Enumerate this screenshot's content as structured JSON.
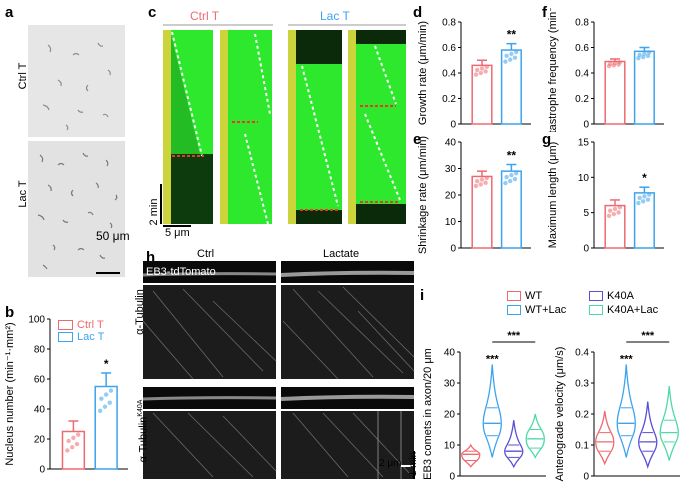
{
  "panel_labels": {
    "a": "a",
    "b": "b",
    "c": "c",
    "d": "d",
    "e": "e",
    "f": "f",
    "g": "g",
    "h": "h",
    "i": "i"
  },
  "colors": {
    "ctrl": "#ee6a70",
    "lac": "#3ca3ee",
    "wt": "#ee6a70",
    "wt_lac": "#3ca3ee",
    "k40a": "#5a4fd6",
    "k40a_lac": "#4fd9a6",
    "sig": "#000000"
  },
  "panel_a": {
    "ctrl_label": "Ctrl T",
    "lac_label": "Lac T",
    "scale": "50 μm"
  },
  "panel_c": {
    "ctrl_label": "Ctrl T",
    "lac_label": "Lac T",
    "time_scale": "2 min",
    "space_scale": "5 μm"
  },
  "panel_h": {
    "ctrl": "Ctrl",
    "lactate": "Lactate",
    "eb3": "EB3-tdTomato",
    "tub": "α-Tubulin",
    "tub_k40a": "α-Tubulin",
    "k40a_sup": "K40A",
    "scale_space": "2 μm",
    "scale_time": "1 min"
  },
  "panel_i_legend": {
    "wt": "WT",
    "wt_lac": "WT+Lac",
    "k40a": "K40A",
    "k40a_lac": "K40A+Lac"
  },
  "chart_data": [
    {
      "panel": "b",
      "type": "bar",
      "ylabel": "Nucleus number (min⁻¹·mm²)",
      "ylim": [
        0,
        100
      ],
      "yticks": [
        0,
        20,
        40,
        60,
        80,
        100
      ],
      "legend": [
        "Ctrl T",
        "Lac T"
      ],
      "categories": [
        "Ctrl T",
        "Lac T"
      ],
      "values": [
        25,
        55
      ],
      "errors": [
        7,
        9
      ],
      "significance": "*"
    },
    {
      "panel": "d",
      "type": "bar",
      "ylabel": "Growth rate (μm/min)",
      "ylim": [
        0,
        0.8
      ],
      "yticks": [
        0,
        0.2,
        0.4,
        0.6,
        0.8
      ],
      "categories": [
        "Ctrl T",
        "Lac T"
      ],
      "values": [
        0.46,
        0.58
      ],
      "errors": [
        0.04,
        0.05
      ],
      "significance": "**"
    },
    {
      "panel": "e",
      "type": "bar",
      "ylabel": "Shrinkage rate (μm/min)",
      "ylim": [
        0,
        40
      ],
      "yticks": [
        0,
        10,
        20,
        30,
        40
      ],
      "categories": [
        "Ctrl T",
        "Lac T"
      ],
      "values": [
        27,
        29
      ],
      "errors": [
        2,
        2.5
      ],
      "significance": "**"
    },
    {
      "panel": "f",
      "type": "bar",
      "ylabel": "Catastrophe frequency (min⁻¹)",
      "ylim": [
        0,
        0.8
      ],
      "yticks": [
        0,
        0.2,
        0.4,
        0.6,
        0.8
      ],
      "categories": [
        "Ctrl T",
        "Lac T"
      ],
      "values": [
        0.49,
        0.57
      ],
      "errors": [
        0.02,
        0.03
      ],
      "significance": ""
    },
    {
      "panel": "g",
      "type": "bar",
      "ylabel": "Maximum length (μm)",
      "ylim": [
        0,
        15
      ],
      "yticks": [
        0,
        5,
        10,
        15
      ],
      "categories": [
        "Ctrl T",
        "Lac T"
      ],
      "values": [
        6,
        7.8
      ],
      "errors": [
        0.8,
        0.8
      ],
      "significance": "*"
    },
    {
      "panel": "i1",
      "type": "violin",
      "ylabel": "EB3 comets in axon/20 μm",
      "ylim": [
        0,
        40
      ],
      "yticks": [
        0,
        10,
        20,
        30,
        40
      ],
      "categories": [
        "WT",
        "WT+Lac",
        "K40A",
        "K40A+Lac"
      ],
      "medians": [
        7,
        17,
        8,
        12
      ],
      "q1": [
        5,
        13,
        6,
        9
      ],
      "q3": [
        8,
        22,
        10,
        15
      ],
      "min": [
        3,
        6,
        3,
        6
      ],
      "max": [
        10,
        36,
        18,
        20
      ],
      "significance": [
        "***",
        "***"
      ]
    },
    {
      "panel": "i2",
      "type": "violin",
      "ylabel": "Anterograde velocity (μm/s)",
      "ylim": [
        0,
        0.4
      ],
      "yticks": [
        0,
        0.1,
        0.2,
        0.3,
        0.4
      ],
      "categories": [
        "WT",
        "WT+Lac",
        "K40A",
        "K40A+Lac"
      ],
      "medians": [
        0.11,
        0.17,
        0.11,
        0.14
      ],
      "q1": [
        0.08,
        0.13,
        0.08,
        0.11
      ],
      "q3": [
        0.14,
        0.22,
        0.14,
        0.18
      ],
      "min": [
        0.04,
        0.06,
        0.03,
        0.05
      ],
      "max": [
        0.21,
        0.36,
        0.24,
        0.29
      ],
      "significance": [
        "***",
        "***"
      ]
    }
  ]
}
